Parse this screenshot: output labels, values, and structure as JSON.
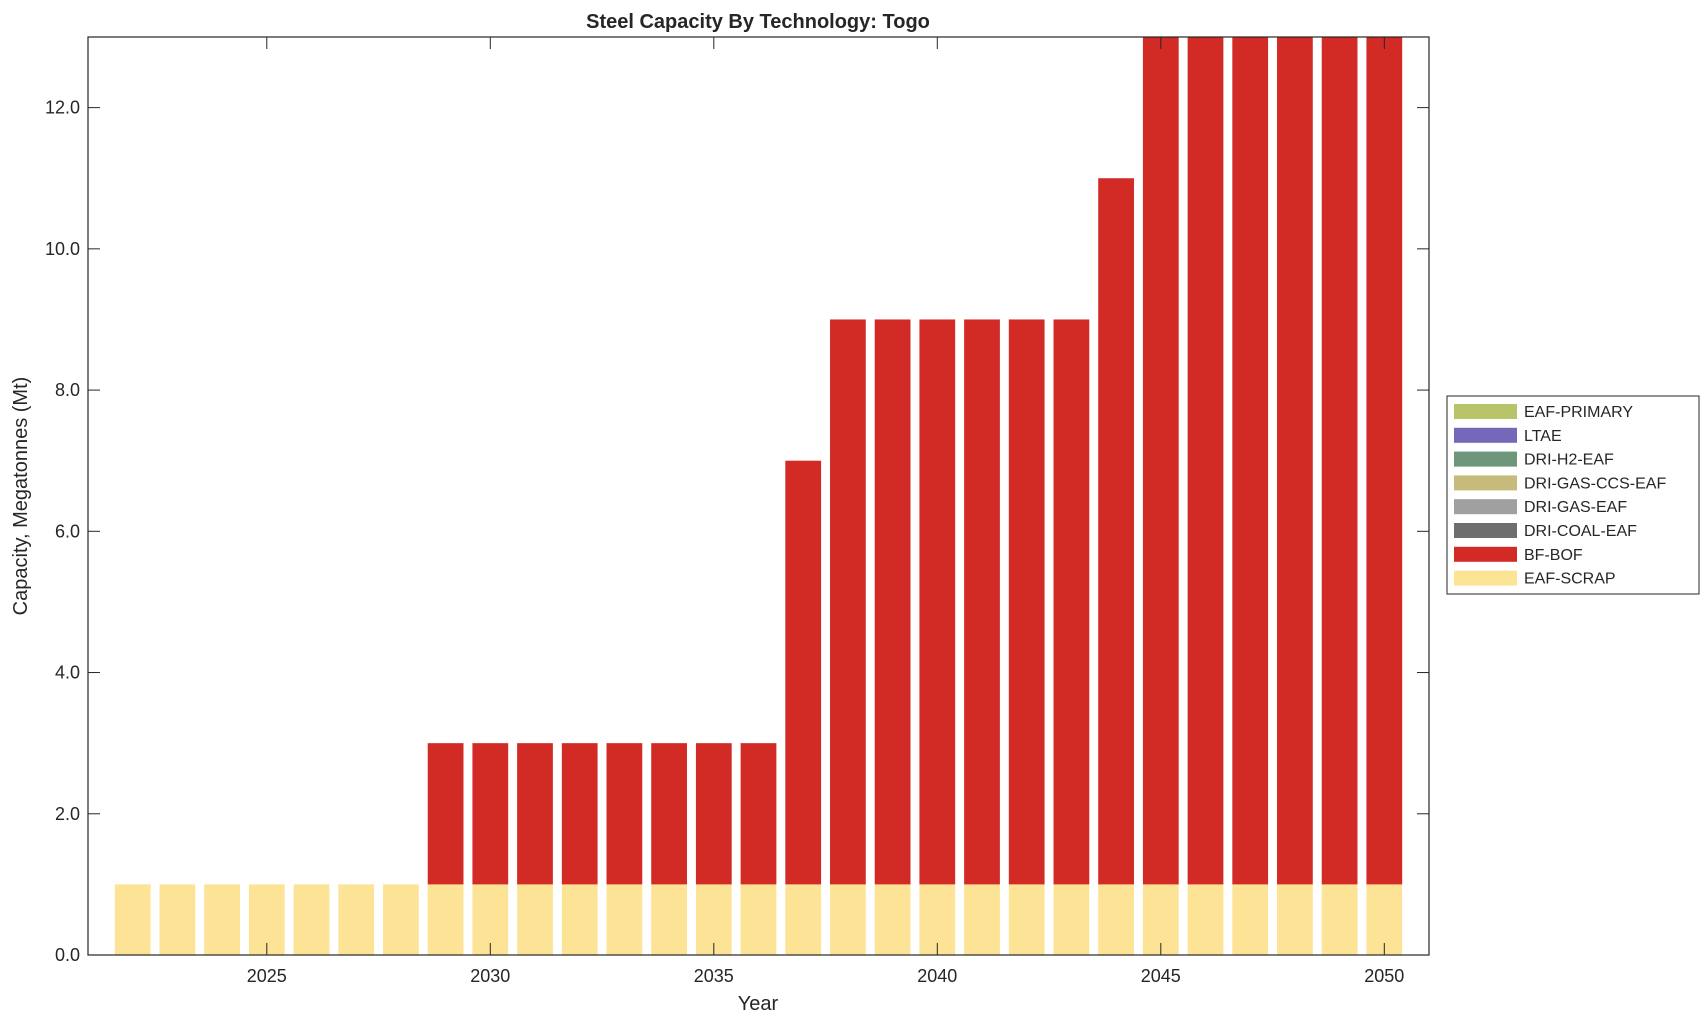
{
  "chart_data": {
    "type": "bar",
    "stacked": true,
    "title": "Steel Capacity By Technology: Togo",
    "xlabel": "Year",
    "ylabel": "Capacity, Megatonnes (Mt)",
    "xlim": [
      2021,
      2051
    ],
    "ylim": [
      0,
      13
    ],
    "xticks": [
      2025,
      2030,
      2035,
      2040,
      2045,
      2050
    ],
    "yticks": [
      0,
      2,
      4,
      6,
      8,
      10,
      12
    ],
    "ytick_labels": [
      "0.0",
      "2.0",
      "4.0",
      "6.0",
      "8.0",
      "10.0",
      "12.0"
    ],
    "grid": false,
    "legend_placement": "right-outside",
    "x": [
      2022,
      2023,
      2024,
      2025,
      2026,
      2027,
      2028,
      2029,
      2030,
      2031,
      2032,
      2033,
      2034,
      2035,
      2036,
      2037,
      2038,
      2039,
      2040,
      2041,
      2042,
      2043,
      2044,
      2045,
      2046,
      2047,
      2048,
      2049,
      2050
    ],
    "series": [
      {
        "name": "EAF-SCRAP",
        "color": "#fde395",
        "values": [
          1,
          1,
          1,
          1,
          1,
          1,
          1,
          1,
          1,
          1,
          1,
          1,
          1,
          1,
          1,
          1,
          1,
          1,
          1,
          1,
          1,
          1,
          1,
          1,
          1,
          1,
          1,
          1,
          1
        ]
      },
      {
        "name": "BF-BOF",
        "color": "#d22b25",
        "values": [
          0,
          0,
          0,
          0,
          0,
          0,
          0,
          2,
          2,
          2,
          2,
          2,
          2,
          2,
          2,
          6,
          8,
          8,
          8,
          8,
          8,
          8,
          10,
          12,
          12,
          12,
          12,
          12,
          12
        ]
      },
      {
        "name": "DRI-COAL-EAF",
        "color": "#6e6e6e",
        "values": [
          0,
          0,
          0,
          0,
          0,
          0,
          0,
          0,
          0,
          0,
          0,
          0,
          0,
          0,
          0,
          0,
          0,
          0,
          0,
          0,
          0,
          0,
          0,
          0,
          0,
          0,
          0,
          0,
          0
        ]
      },
      {
        "name": "DRI-GAS-EAF",
        "color": "#a0a0a0",
        "values": [
          0,
          0,
          0,
          0,
          0,
          0,
          0,
          0,
          0,
          0,
          0,
          0,
          0,
          0,
          0,
          0,
          0,
          0,
          0,
          0,
          0,
          0,
          0,
          0,
          0,
          0,
          0,
          0,
          0
        ]
      },
      {
        "name": "DRI-GAS-CCS-EAF",
        "color": "#c6bb7b",
        "values": [
          0,
          0,
          0,
          0,
          0,
          0,
          0,
          0,
          0,
          0,
          0,
          0,
          0,
          0,
          0,
          0,
          0,
          0,
          0,
          0,
          0,
          0,
          0,
          0,
          0,
          0,
          0,
          0,
          0
        ]
      },
      {
        "name": "DRI-H2-EAF",
        "color": "#6f967b",
        "values": [
          0,
          0,
          0,
          0,
          0,
          0,
          0,
          0,
          0,
          0,
          0,
          0,
          0,
          0,
          0,
          0,
          0,
          0,
          0,
          0,
          0,
          0,
          0,
          0,
          0,
          0,
          0,
          0,
          0
        ]
      },
      {
        "name": "LTAE",
        "color": "#7568b8",
        "values": [
          0,
          0,
          0,
          0,
          0,
          0,
          0,
          0,
          0,
          0,
          0,
          0,
          0,
          0,
          0,
          0,
          0,
          0,
          0,
          0,
          0,
          0,
          0,
          0,
          0,
          0,
          0,
          0,
          0
        ]
      },
      {
        "name": "EAF-PRIMARY",
        "color": "#b9c468",
        "values": [
          0,
          0,
          0,
          0,
          0,
          0,
          0,
          0,
          0,
          0,
          0,
          0,
          0,
          0,
          0,
          0,
          0,
          0,
          0,
          0,
          0,
          0,
          0,
          0,
          0,
          0,
          0,
          0,
          0
        ]
      }
    ],
    "legend_order": [
      "EAF-PRIMARY",
      "LTAE",
      "DRI-H2-EAF",
      "DRI-GAS-CCS-EAF",
      "DRI-GAS-EAF",
      "DRI-COAL-EAF",
      "BF-BOF",
      "EAF-SCRAP"
    ]
  }
}
